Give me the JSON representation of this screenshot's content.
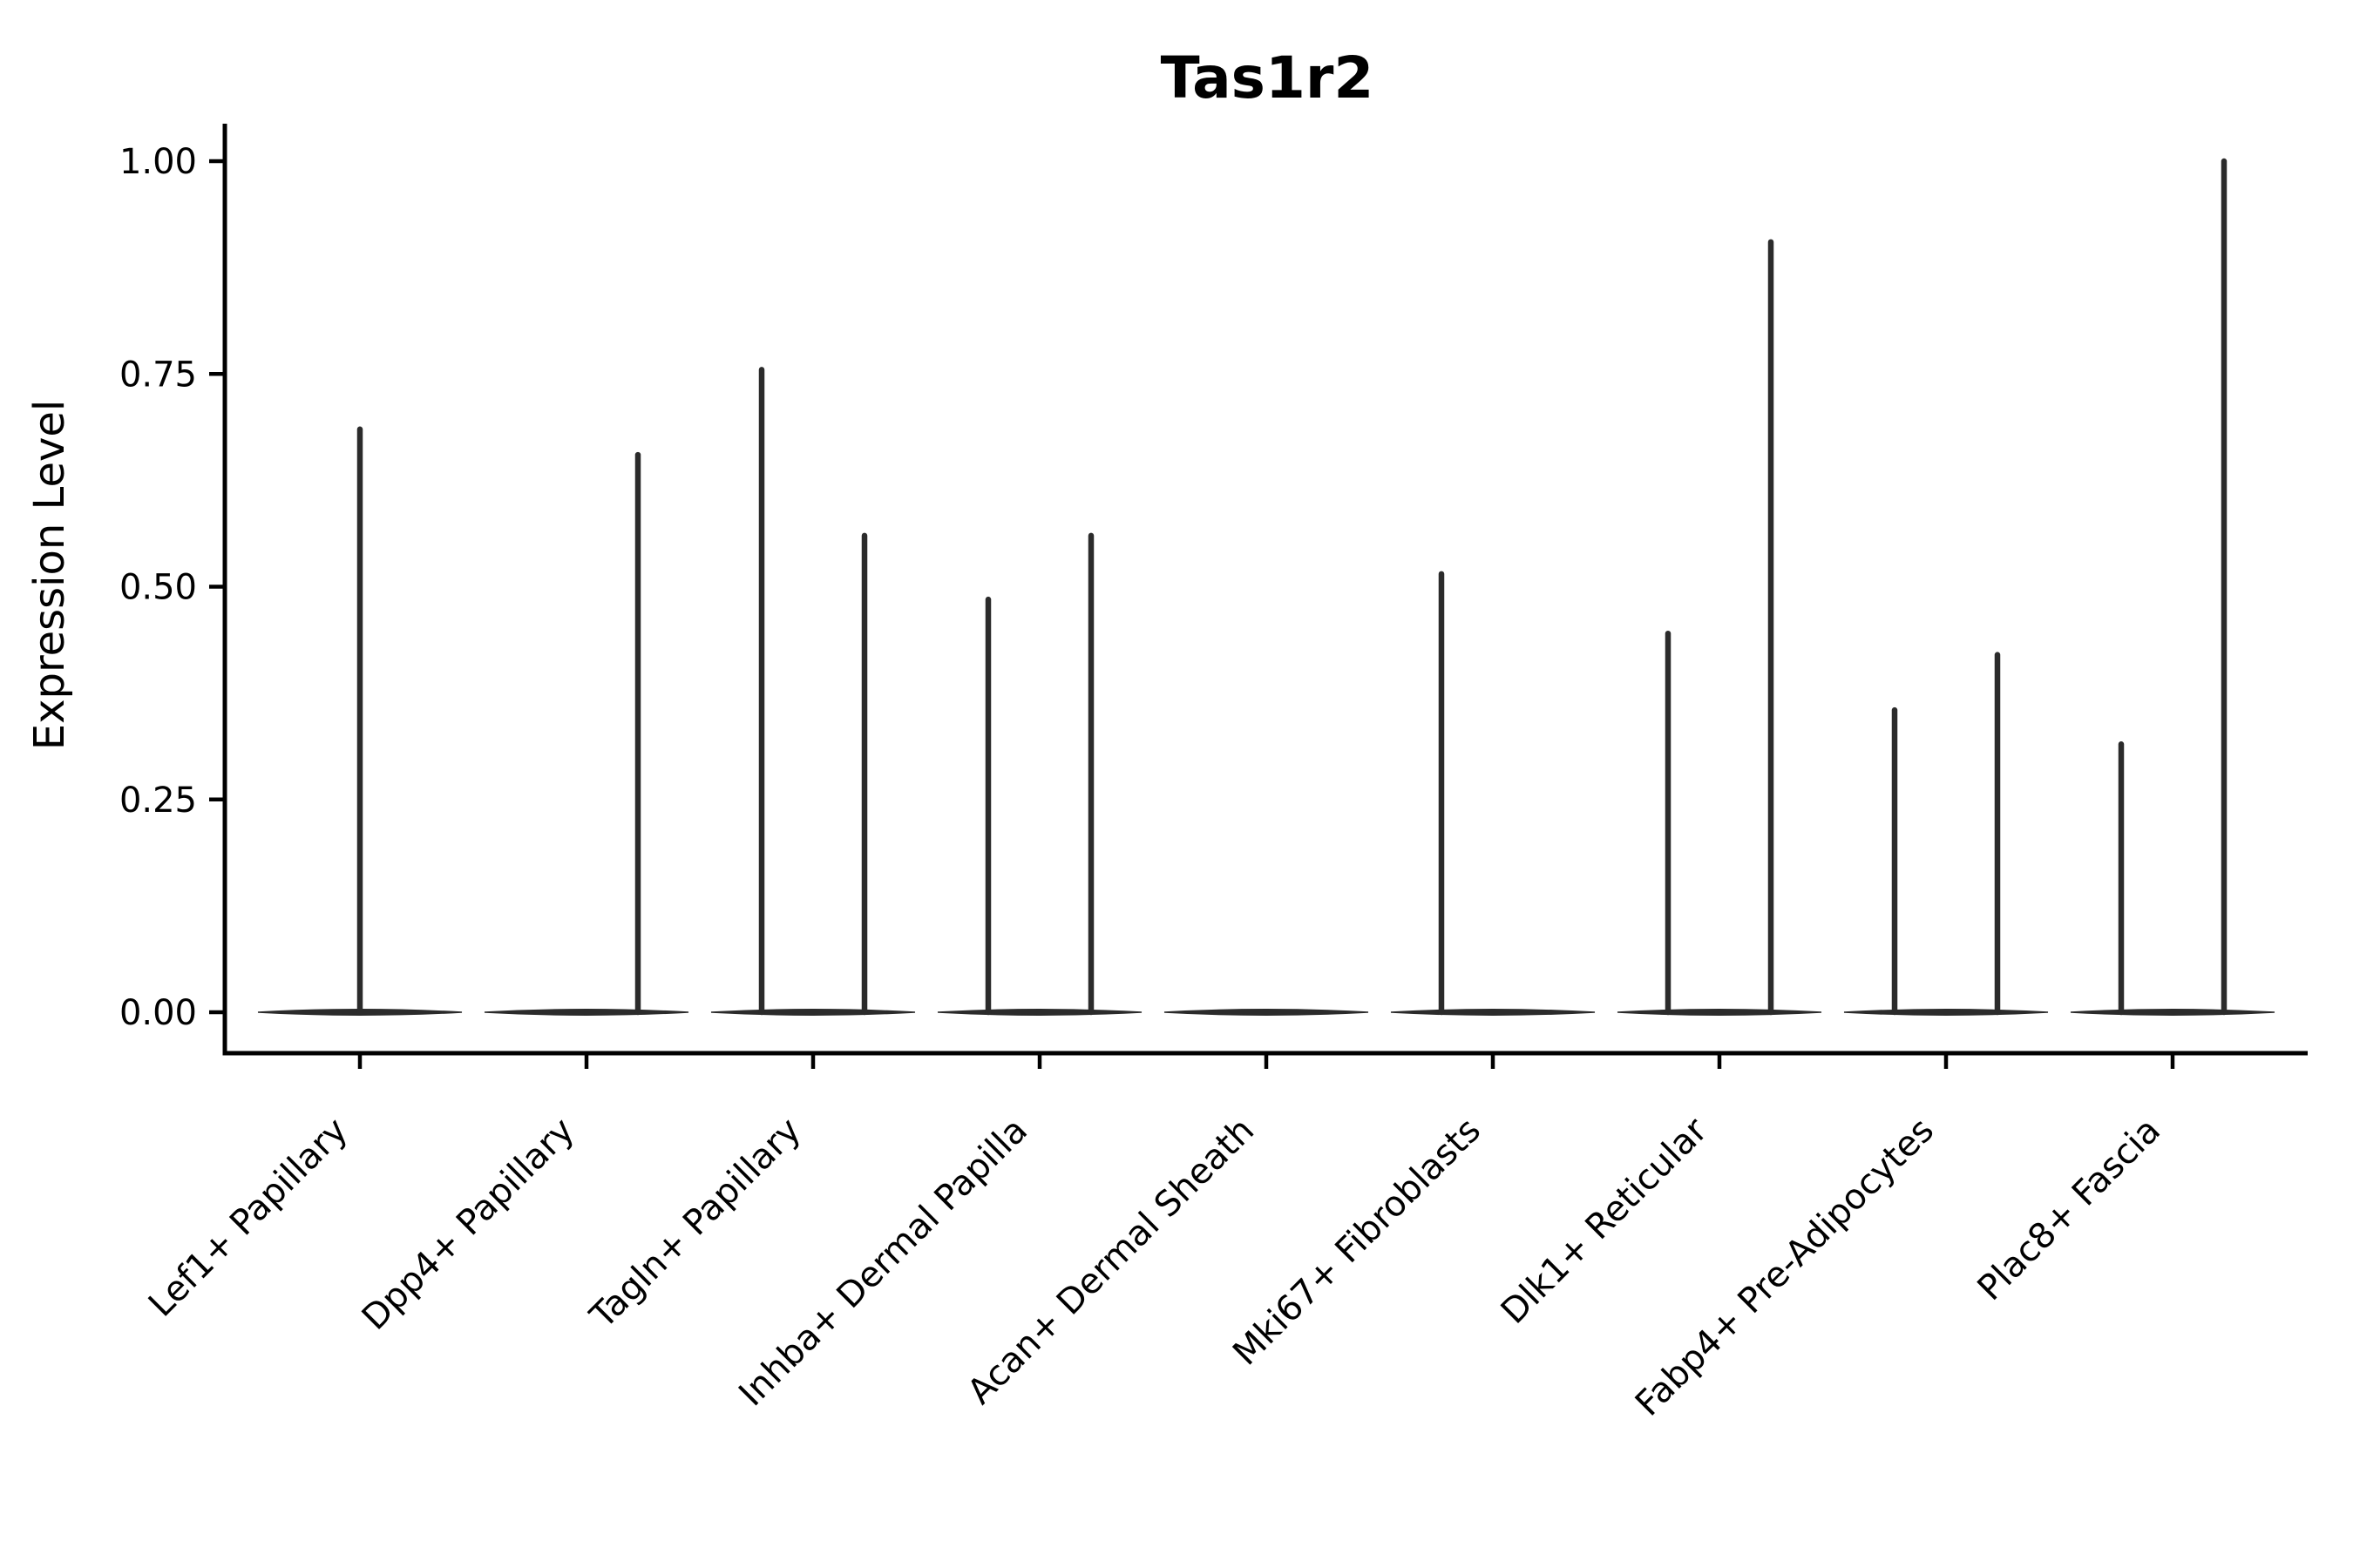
{
  "chart_data": {
    "type": "violin",
    "title": "Tas1r2",
    "ylabel": "Expression Level",
    "xlabel": "",
    "ylim": [
      0,
      1.0
    ],
    "grid": false,
    "legend": "none",
    "background": "#ffffff",
    "colors": {
      "violin": "#2b2b2b",
      "spine": "#000000",
      "text": "#000000"
    },
    "y_ticks": [
      {
        "value": 0.0,
        "label": "0.00"
      },
      {
        "value": 0.25,
        "label": "0.25"
      },
      {
        "value": 0.5,
        "label": "0.50"
      },
      {
        "value": 0.75,
        "label": "0.75"
      },
      {
        "value": 1.0,
        "label": "1.00"
      }
    ],
    "categories": [
      "Lef1+ Papillary",
      "Dpp4+ Papillary",
      "Tagln+ Papillary",
      "Inhba+ Dermal Papilla",
      "Acan+ Dermal Sheath",
      "Mki67+ Fibroblasts",
      "Dlk1+ Reticular",
      "Fabp4+ Pre-Adipocytes",
      "Plac8+ Fascia"
    ],
    "violins": [
      {
        "category": "Lef1+ Papillary",
        "baseline": 0,
        "spikes": [
          {
            "dx": 0,
            "max": 0.685
          }
        ]
      },
      {
        "category": "Dpp4+ Papillary",
        "baseline": 0,
        "spikes": [
          {
            "dx": 59,
            "max": 0.655
          }
        ]
      },
      {
        "category": "Tagln+ Papillary",
        "baseline": 0,
        "spikes": [
          {
            "dx": -59,
            "max": 0.755
          },
          {
            "dx": 59,
            "max": 0.56
          }
        ]
      },
      {
        "category": "Inhba+ Dermal Papilla",
        "baseline": 0,
        "spikes": [
          {
            "dx": -59,
            "max": 0.485
          },
          {
            "dx": 59,
            "max": 0.56
          }
        ]
      },
      {
        "category": "Acan+ Dermal Sheath",
        "baseline": 0,
        "spikes": []
      },
      {
        "category": "Mki67+ Fibroblasts",
        "baseline": 0,
        "spikes": [
          {
            "dx": -59,
            "max": 0.515
          }
        ]
      },
      {
        "category": "Dlk1+ Reticular",
        "baseline": 0,
        "spikes": [
          {
            "dx": -59,
            "max": 0.445
          },
          {
            "dx": 59,
            "max": 0.905
          }
        ]
      },
      {
        "category": "Fabp4+ Pre-Adipocytes",
        "baseline": 0,
        "spikes": [
          {
            "dx": -59,
            "max": 0.355
          },
          {
            "dx": 59,
            "max": 0.42
          }
        ]
      },
      {
        "category": "Plac8+ Fascia",
        "baseline": 0,
        "spikes": [
          {
            "dx": -59,
            "max": 0.315
          },
          {
            "dx": 59,
            "max": 1.0
          }
        ]
      }
    ]
  }
}
